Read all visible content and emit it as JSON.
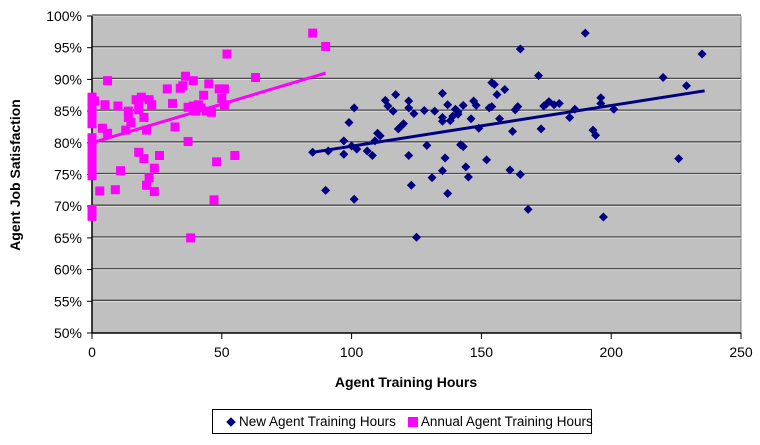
{
  "chart_data": {
    "type": "scatter",
    "title": "",
    "xlabel": "Agent Training Hours",
    "ylabel": "Agent Job Satisfaction",
    "xlim": [
      0,
      250
    ],
    "ylim": [
      0.5,
      1.0
    ],
    "x_ticks": [
      "0",
      "50",
      "100",
      "150",
      "200",
      "250"
    ],
    "y_ticks": [
      "50%",
      "55%",
      "60%",
      "65%",
      "70%",
      "75%",
      "80%",
      "85%",
      "90%",
      "95%",
      "100%"
    ],
    "grid": "horizontal major gridlines",
    "plot_background": "#c0c0c0",
    "legend_position": "bottom",
    "series": [
      {
        "name": "New Agent Training Hours",
        "marker": "diamond",
        "color": "#000080",
        "trendline": {
          "x": [
            85,
            236
          ],
          "y": [
            0.785,
            0.882
          ]
        },
        "points": [
          [
            85,
            0.785
          ],
          [
            91,
            0.787
          ],
          [
            97,
            0.803
          ],
          [
            99,
            0.832
          ],
          [
            101,
            0.855
          ],
          [
            101,
            0.711
          ],
          [
            90,
            0.725
          ],
          [
            97,
            0.782
          ],
          [
            106,
            0.787
          ],
          [
            108,
            0.78
          ],
          [
            109,
            0.803
          ],
          [
            110,
            0.815
          ],
          [
            111,
            0.811
          ],
          [
            113,
            0.867
          ],
          [
            114,
            0.858
          ],
          [
            116,
            0.85
          ],
          [
            117,
            0.876
          ],
          [
            118,
            0.822
          ],
          [
            119,
            0.826
          ],
          [
            120,
            0.83
          ],
          [
            122,
            0.855
          ],
          [
            122,
            0.866
          ],
          [
            122,
            0.78
          ],
          [
            123,
            0.733
          ],
          [
            124,
            0.846
          ],
          [
            125,
            0.651
          ],
          [
            128,
            0.851
          ],
          [
            129,
            0.796
          ],
          [
            132,
            0.85
          ],
          [
            135,
            0.878
          ],
          [
            135,
            0.84
          ],
          [
            135,
            0.834
          ],
          [
            135,
            0.756
          ],
          [
            136,
            0.776
          ],
          [
            137,
            0.86
          ],
          [
            137,
            0.72
          ],
          [
            138,
            0.835
          ],
          [
            139,
            0.842
          ],
          [
            140,
            0.853
          ],
          [
            141,
            0.849
          ],
          [
            141,
            0.845
          ],
          [
            142,
            0.797
          ],
          [
            143,
            0.859
          ],
          [
            143,
            0.794
          ],
          [
            144,
            0.762
          ],
          [
            145,
            0.746
          ],
          [
            146,
            0.838
          ],
          [
            147,
            0.866
          ],
          [
            148,
            0.859
          ],
          [
            149,
            0.823
          ],
          [
            152,
            0.773
          ],
          [
            153,
            0.855
          ],
          [
            154,
            0.895
          ],
          [
            154,
            0.857
          ],
          [
            155,
            0.892
          ],
          [
            156,
            0.876
          ],
          [
            157,
            0.838
          ],
          [
            159,
            0.884
          ],
          [
            161,
            0.757
          ],
          [
            162,
            0.818
          ],
          [
            163,
            0.852
          ],
          [
            164,
            0.857
          ],
          [
            165,
            0.948
          ],
          [
            165,
            0.75
          ],
          [
            172,
            0.906
          ],
          [
            173,
            0.822
          ],
          [
            174,
            0.858
          ],
          [
            175,
            0.861
          ],
          [
            176,
            0.865
          ],
          [
            178,
            0.86
          ],
          [
            180,
            0.862
          ],
          [
            184,
            0.84
          ],
          [
            186,
            0.853
          ],
          [
            190,
            0.973
          ],
          [
            193,
            0.82
          ],
          [
            194,
            0.812
          ],
          [
            196,
            0.871
          ],
          [
            196,
            0.862
          ],
          [
            197,
            0.683
          ],
          [
            201,
            0.853
          ],
          [
            220,
            0.903
          ],
          [
            226,
            0.775
          ],
          [
            229,
            0.89
          ],
          [
            235,
            0.94
          ],
          [
            168,
            0.695
          ],
          [
            131,
            0.745
          ],
          [
            100,
            0.795
          ],
          [
            102,
            0.79
          ]
        ]
      },
      {
        "name": "Annual Agent Training Hours",
        "marker": "square",
        "color": "#ff00ff",
        "trendline": {
          "x": [
            0,
            90
          ],
          "y": [
            0.8,
            0.91
          ]
        },
        "points": [
          [
            0,
            0.872
          ],
          [
            0,
            0.868
          ],
          [
            0,
            0.858
          ],
          [
            0,
            0.848
          ],
          [
            0,
            0.838
          ],
          [
            0,
            0.83
          ],
          [
            0,
            0.808
          ],
          [
            0,
            0.8
          ],
          [
            0,
            0.79
          ],
          [
            0,
            0.78
          ],
          [
            0,
            0.77
          ],
          [
            0,
            0.757
          ],
          [
            0,
            0.748
          ],
          [
            0,
            0.695
          ],
          [
            0,
            0.684
          ],
          [
            1,
            0.866
          ],
          [
            3,
            0.724
          ],
          [
            4,
            0.823
          ],
          [
            5,
            0.86
          ],
          [
            6,
            0.898
          ],
          [
            6,
            0.815
          ],
          [
            9,
            0.726
          ],
          [
            10,
            0.858
          ],
          [
            11,
            0.756
          ],
          [
            13,
            0.82
          ],
          [
            14,
            0.85
          ],
          [
            14,
            0.84
          ],
          [
            15,
            0.832
          ],
          [
            17,
            0.868
          ],
          [
            18,
            0.862
          ],
          [
            18,
            0.852
          ],
          [
            18,
            0.785
          ],
          [
            19,
            0.872
          ],
          [
            20,
            0.84
          ],
          [
            20,
            0.775
          ],
          [
            21,
            0.82
          ],
          [
            21,
            0.733
          ],
          [
            22,
            0.868
          ],
          [
            22,
            0.745
          ],
          [
            23,
            0.86
          ],
          [
            24,
            0.723
          ],
          [
            24,
            0.76
          ],
          [
            26,
            0.78
          ],
          [
            29,
            0.885
          ],
          [
            31,
            0.862
          ],
          [
            32,
            0.825
          ],
          [
            34,
            0.886
          ],
          [
            35,
            0.89
          ],
          [
            36,
            0.905
          ],
          [
            37,
            0.856
          ],
          [
            37,
            0.802
          ],
          [
            38,
            0.65
          ],
          [
            39,
            0.898
          ],
          [
            39,
            0.858
          ],
          [
            40,
            0.85
          ],
          [
            41,
            0.86
          ],
          [
            42,
            0.855
          ],
          [
            43,
            0.875
          ],
          [
            44,
            0.85
          ],
          [
            45,
            0.893
          ],
          [
            46,
            0.848
          ],
          [
            47,
            0.71
          ],
          [
            48,
            0.77
          ],
          [
            49,
            0.885
          ],
          [
            50,
            0.87
          ],
          [
            51,
            0.885
          ],
          [
            51,
            0.86
          ],
          [
            52,
            0.94
          ],
          [
            55,
            0.78
          ],
          [
            63,
            0.903
          ],
          [
            85,
            0.973
          ],
          [
            90,
            0.952
          ]
        ]
      }
    ]
  },
  "legend": {
    "items": [
      {
        "label": "New Agent Training Hours"
      },
      {
        "label": "Annual Agent Training Hours"
      }
    ]
  }
}
